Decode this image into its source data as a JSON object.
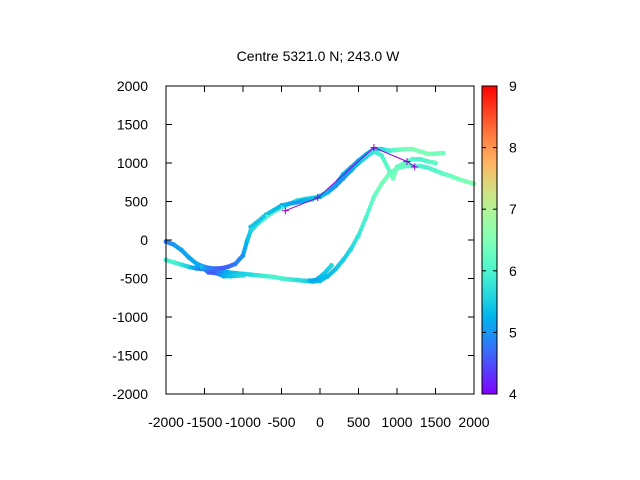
{
  "chart_data": {
    "type": "scatter",
    "title": "Centre 5321.0 N; 243.0  W",
    "xlabel": "",
    "ylabel": "",
    "xlim": [
      -2000,
      2000
    ],
    "ylim": [
      -2000,
      2000
    ],
    "x_ticks": [
      -2000,
      -1500,
      -1000,
      -500,
      0,
      500,
      1000,
      1500,
      2000
    ],
    "y_ticks": [
      -2000,
      -1500,
      -1000,
      -500,
      0,
      500,
      1000,
      1500,
      2000
    ],
    "x_tick_labels": [
      "-2000",
      "-1500",
      "-1000",
      "-500",
      "0",
      "500",
      "1000",
      "1500",
      "2000"
    ],
    "y_tick_labels": [
      "2000",
      "1500",
      "1000",
      "500",
      "0",
      "-500",
      "-1000",
      "-1500",
      "-2000"
    ],
    "grid": false,
    "colorbar": {
      "range": [
        4,
        9
      ],
      "ticks": [
        4,
        5,
        6,
        7,
        8,
        9
      ],
      "tick_labels": [
        "9",
        "8",
        "7",
        "6",
        "5",
        "4"
      ],
      "colormap": "rainbow",
      "colors": [
        "#8000ff",
        "#2c7ef7",
        "#2adddd",
        "#80ff80",
        "#ffb360",
        "#ff0000"
      ]
    },
    "series": [
      {
        "style": "scatter-colored",
        "points": [
          [
            -2000,
            -260,
            5.9
          ],
          [
            -1900,
            -290,
            6.0
          ],
          [
            -1800,
            -320,
            5.8
          ],
          [
            -1700,
            -350,
            5.5
          ],
          [
            -1600,
            -370,
            5.0
          ],
          [
            -1500,
            -380,
            4.6
          ],
          [
            -1400,
            -390,
            4.5
          ],
          [
            -1300,
            -400,
            4.8
          ],
          [
            -1200,
            -420,
            5.2
          ],
          [
            -1100,
            -430,
            5.4
          ],
          [
            -1000,
            -440,
            5.5
          ],
          [
            -900,
            -450,
            5.6
          ],
          [
            -800,
            -460,
            5.8
          ],
          [
            -700,
            -470,
            5.9
          ],
          [
            -600,
            -480,
            6.0
          ],
          [
            -500,
            -500,
            6.0
          ],
          [
            -400,
            -510,
            5.9
          ],
          [
            -300,
            -520,
            5.7
          ],
          [
            -200,
            -530,
            5.6
          ],
          [
            -100,
            -540,
            5.5
          ],
          [
            0,
            -530,
            5.3
          ],
          [
            100,
            -470,
            5.3
          ],
          [
            200,
            -380,
            5.4
          ],
          [
            300,
            -260,
            5.5
          ],
          [
            400,
            -120,
            5.6
          ],
          [
            500,
            60,
            5.8
          ],
          [
            600,
            300,
            6.0
          ],
          [
            700,
            560,
            6.2
          ],
          [
            800,
            730,
            6.4
          ],
          [
            900,
            860,
            6.4
          ],
          [
            1000,
            930,
            6.3
          ],
          [
            1100,
            960,
            6.2
          ],
          [
            1200,
            960,
            6.1
          ],
          [
            1300,
            960,
            6.0
          ],
          [
            1400,
            940,
            6.0
          ],
          [
            1500,
            900,
            6.1
          ],
          [
            1600,
            860,
            6.2
          ],
          [
            1700,
            830,
            6.3
          ],
          [
            1800,
            790,
            6.4
          ],
          [
            1900,
            760,
            6.5
          ],
          [
            2000,
            730,
            6.5
          ],
          [
            -2000,
            -20,
            4.8
          ],
          [
            -1900,
            -60,
            5.0
          ],
          [
            -1800,
            -130,
            5.1
          ],
          [
            -1700,
            -230,
            5.1
          ],
          [
            -1600,
            -310,
            5.2
          ],
          [
            -1500,
            -350,
            5.0
          ],
          [
            -1400,
            -370,
            4.8
          ],
          [
            -1300,
            -370,
            4.6
          ],
          [
            -1200,
            -350,
            4.6
          ],
          [
            -1100,
            -310,
            4.8
          ],
          [
            -1000,
            -200,
            5.0
          ],
          [
            -950,
            -20,
            5.3
          ],
          [
            -900,
            120,
            5.5
          ],
          [
            -800,
            220,
            5.8
          ],
          [
            -700,
            300,
            6.0
          ],
          [
            -600,
            370,
            6.1
          ],
          [
            -500,
            420,
            6.0
          ],
          [
            -400,
            470,
            5.8
          ],
          [
            -300,
            510,
            5.6
          ],
          [
            -200,
            530,
            5.5
          ],
          [
            -100,
            545,
            5.5
          ],
          [
            0,
            560,
            5.5
          ],
          [
            100,
            620,
            5.5
          ],
          [
            200,
            720,
            5.4
          ],
          [
            300,
            850,
            5.2
          ],
          [
            400,
            940,
            5.0
          ],
          [
            500,
            1030,
            5.0
          ],
          [
            600,
            1110,
            5.2
          ],
          [
            700,
            1180,
            5.4
          ],
          [
            800,
            1180,
            5.6
          ],
          [
            900,
            1160,
            5.9
          ],
          [
            1000,
            1170,
            6.2
          ],
          [
            1100,
            1180,
            6.4
          ],
          [
            1200,
            1180,
            6.5
          ],
          [
            1300,
            1150,
            6.5
          ],
          [
            1400,
            1120,
            6.5
          ],
          [
            1500,
            1120,
            6.4
          ],
          [
            1600,
            1130,
            6.4
          ],
          [
            -1550,
            -340,
            5.6
          ],
          [
            -1450,
            -420,
            4.6
          ],
          [
            -1350,
            -430,
            4.6
          ],
          [
            -1250,
            -470,
            5.2
          ],
          [
            -1150,
            -470,
            5.4
          ],
          [
            -1000,
            -460,
            5.6
          ],
          [
            -900,
            170,
            5.4
          ],
          [
            -700,
            330,
            5.4
          ],
          [
            -500,
            450,
            5.3
          ],
          [
            -300,
            490,
            5.0
          ],
          [
            -200,
            510,
            5.2
          ],
          [
            -100,
            530,
            5.4
          ],
          [
            100,
            620,
            5.2
          ],
          [
            200,
            700,
            5.0
          ],
          [
            300,
            800,
            5.0
          ],
          [
            400,
            900,
            5.2
          ],
          [
            500,
            1000,
            5.4
          ],
          [
            600,
            1080,
            5.6
          ],
          [
            700,
            1150,
            5.8
          ],
          [
            800,
            1100,
            6.0
          ],
          [
            900,
            900,
            6.2
          ],
          [
            950,
            800,
            6.4
          ],
          [
            1000,
            950,
            6.3
          ],
          [
            1100,
            1000,
            6.2
          ],
          [
            1200,
            1050,
            6.1
          ],
          [
            1300,
            1050,
            6.0
          ],
          [
            1400,
            1020,
            6.1
          ],
          [
            1500,
            1000,
            6.2
          ],
          [
            -150,
            -530,
            5.3
          ],
          [
            -50,
            -520,
            5.1
          ],
          [
            50,
            -440,
            5.4
          ],
          [
            150,
            -330,
            5.6
          ]
        ]
      },
      {
        "style": "line-with-plus-markers",
        "color": "#9400d3",
        "points": [
          [
            -450,
            380
          ],
          [
            -30,
            550
          ],
          [
            700,
            1200
          ],
          [
            1130,
            1020
          ],
          [
            1230,
            950
          ]
        ]
      }
    ]
  }
}
